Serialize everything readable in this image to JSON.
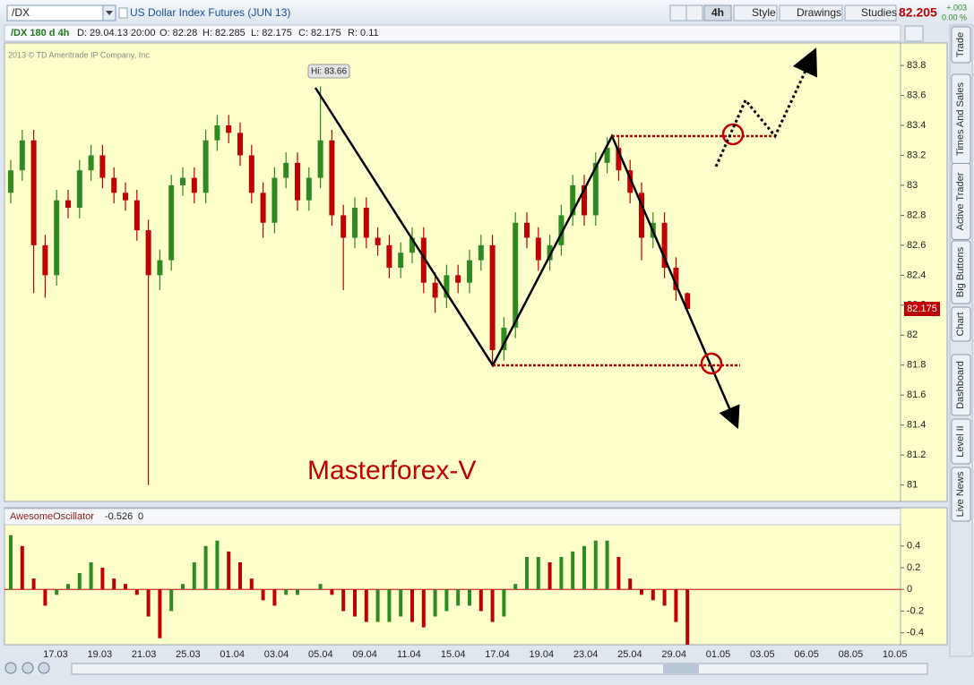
{
  "toolbar": {
    "symbol": "/DX",
    "description": "US Dollar Index Futures (JUN 13)",
    "interval": "4h",
    "style": "Style",
    "drawings": "Drawings",
    "studies": "Studies",
    "last_price": "82.205",
    "change": "+.003",
    "change_pct": "0.00 %"
  },
  "info_bar": {
    "study": "/DX 180 d 4h",
    "date": "D: 29.04.13 20:00",
    "open": "O: 82.28",
    "high": "H: 82.285",
    "low": "L: 82.175",
    "close": "C: 82.175",
    "range": "R: 0.11"
  },
  "sidebar": {
    "tabs": [
      "Trade",
      "Times And Sales",
      "Active Trader",
      "Big Buttons",
      "Chart",
      "Dashboard",
      "Level II",
      "Live News"
    ]
  },
  "chart_data": [
    {
      "type": "candlestick",
      "copyright": "2013 © TD Ameritrade IP Company, Inc.",
      "hi_label": "Hi: 83.66",
      "annotation": "Masterforex-V",
      "price_tag": "82.175",
      "up_color": "#2e8b22",
      "down_color": "#c00000",
      "x_labels": [
        "17.03",
        "19.03",
        "21.03",
        "25.03",
        "01.04",
        "03.04",
        "05.04",
        "09.04",
        "11.04",
        "15.04",
        "17.04",
        "19.04",
        "23.04",
        "25.04",
        "29.04",
        "01.05",
        "03.05",
        "06.05",
        "08.05",
        "10.05"
      ],
      "ylim": [
        80.89,
        83.95
      ],
      "yticks": [
        81,
        81.2,
        81.4,
        81.6,
        81.8,
        82,
        82.2,
        82.4,
        82.6,
        82.8,
        83,
        83.2,
        83.4,
        83.6,
        83.8
      ],
      "open": [
        82.95,
        83.1,
        83.3,
        82.6,
        82.4,
        82.9,
        82.85,
        83.1,
        83.2,
        83.05,
        82.95,
        82.9,
        82.7,
        82.4,
        82.5,
        83.0,
        83.05,
        82.95,
        83.3,
        83.4,
        83.35,
        83.2,
        82.95,
        82.75,
        83.05,
        83.15,
        82.9,
        83.05,
        83.3,
        82.8,
        82.65,
        82.85,
        82.65,
        82.6,
        82.45,
        82.55,
        82.65,
        82.35,
        82.25,
        82.4,
        82.35,
        82.5,
        82.6,
        81.9,
        82.05,
        82.75,
        82.65,
        82.5,
        82.6,
        82.8,
        83.0,
        82.8,
        83.15,
        83.25,
        83.1,
        82.95,
        82.65,
        82.75,
        82.45,
        82.28
      ],
      "high": [
        83.17,
        83.37,
        83.37,
        82.67,
        82.97,
        82.97,
        83.17,
        83.27,
        83.27,
        83.12,
        83.02,
        82.97,
        82.77,
        82.57,
        83.07,
        83.12,
        83.12,
        83.37,
        83.47,
        83.47,
        83.42,
        83.27,
        83.02,
        83.12,
        83.22,
        83.22,
        83.12,
        83.66,
        83.37,
        82.87,
        82.92,
        82.92,
        82.72,
        82.67,
        82.62,
        82.72,
        82.72,
        82.42,
        82.47,
        82.47,
        82.57,
        82.67,
        82.67,
        82.12,
        82.82,
        82.82,
        82.72,
        82.67,
        82.87,
        83.07,
        83.07,
        83.22,
        83.32,
        83.32,
        83.17,
        83.02,
        82.82,
        82.82,
        82.52,
        82.285
      ],
      "low": [
        82.88,
        83.03,
        82.28,
        82.25,
        82.33,
        82.78,
        82.78,
        83.03,
        82.98,
        82.88,
        82.83,
        82.63,
        81.0,
        82.3,
        82.43,
        82.93,
        82.88,
        82.88,
        83.23,
        83.28,
        83.13,
        82.88,
        82.65,
        82.68,
        82.98,
        82.83,
        82.83,
        82.98,
        82.73,
        82.3,
        82.58,
        82.58,
        82.53,
        82.38,
        82.38,
        82.48,
        82.28,
        82.15,
        82.18,
        82.28,
        82.28,
        82.43,
        81.8,
        81.83,
        81.98,
        82.58,
        82.43,
        82.43,
        82.53,
        82.73,
        82.73,
        82.73,
        83.08,
        83.03,
        82.88,
        82.5,
        82.58,
        82.38,
        82.23,
        82.175
      ],
      "close": [
        83.1,
        83.3,
        82.6,
        82.4,
        82.9,
        82.85,
        83.1,
        83.2,
        83.05,
        82.95,
        82.9,
        82.7,
        82.4,
        82.5,
        83.0,
        83.05,
        82.95,
        83.3,
        83.4,
        83.35,
        83.2,
        82.95,
        82.75,
        83.05,
        83.15,
        82.9,
        83.05,
        83.3,
        82.8,
        82.65,
        82.85,
        82.65,
        82.6,
        82.45,
        82.55,
        82.65,
        82.35,
        82.25,
        82.4,
        82.35,
        82.5,
        82.6,
        81.9,
        82.05,
        82.75,
        82.65,
        82.5,
        82.6,
        82.8,
        83.0,
        82.8,
        83.15,
        83.25,
        83.1,
        82.95,
        82.65,
        82.75,
        82.45,
        82.3,
        82.175
      ]
    },
    {
      "type": "bar",
      "title": "AwesomeOscillator",
      "second_value": 0,
      "up_color": "#2e8b22",
      "down_color": "#c00000",
      "ylim": [
        -0.51,
        0.58
      ],
      "yticks": [
        0.4,
        0.2,
        0,
        -0.2,
        -0.4
      ],
      "values": [
        0.5,
        0.4,
        0.1,
        -0.15,
        -0.05,
        0.05,
        0.15,
        0.25,
        0.2,
        0.1,
        0.05,
        -0.05,
        -0.25,
        -0.45,
        -0.2,
        0.05,
        0.25,
        0.4,
        0.45,
        0.35,
        0.25,
        0.1,
        -0.1,
        -0.15,
        -0.05,
        -0.05,
        0.0,
        0.05,
        -0.05,
        -0.2,
        -0.25,
        -0.3,
        -0.3,
        -0.3,
        -0.25,
        -0.3,
        -0.35,
        -0.25,
        -0.2,
        -0.15,
        -0.15,
        -0.2,
        -0.3,
        -0.25,
        0.05,
        0.3,
        0.3,
        0.25,
        0.3,
        0.35,
        0.4,
        0.45,
        0.45,
        0.3,
        0.1,
        -0.05,
        -0.1,
        -0.15,
        -0.3,
        -0.526
      ]
    }
  ]
}
